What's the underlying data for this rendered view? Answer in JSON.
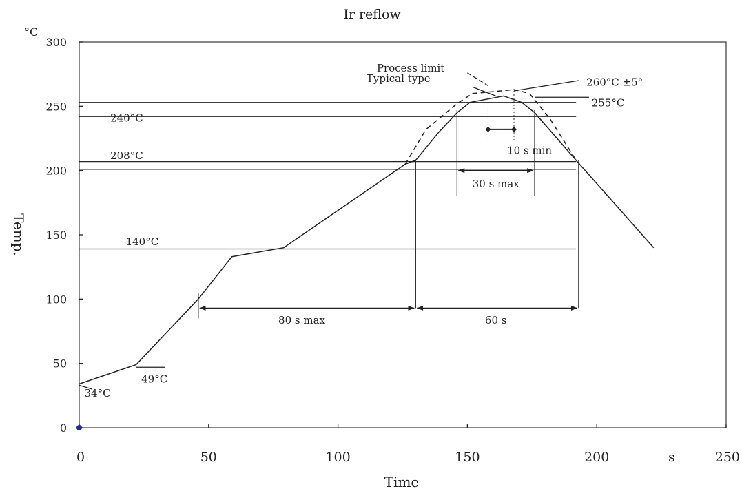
{
  "chart_data": {
    "type": "line",
    "title": "Ir reflow",
    "xlabel": "Time",
    "ylabel": "Temp.",
    "x_unit": "s",
    "y_unit": "°C",
    "xlim": [
      0,
      250
    ],
    "ylim": [
      0,
      300
    ],
    "x_ticks": [
      "0",
      "50",
      "100",
      "150",
      "200",
      "250"
    ],
    "y_ticks": [
      "0",
      "50",
      "100",
      "150",
      "200",
      "250",
      "300"
    ],
    "grid": false,
    "series": [
      {
        "name": "Typical type",
        "style": "solid",
        "x": [
          0,
          22,
          46,
          59,
          79,
          126,
          130,
          139,
          146,
          151,
          164,
          171,
          176,
          192,
          222
        ],
        "y": [
          34,
          49,
          100,
          133,
          140,
          205,
          208,
          230,
          245,
          253,
          258,
          253,
          245,
          208,
          140
        ]
      },
      {
        "name": "Process limit",
        "style": "dashed",
        "x": [
          126,
          134,
          146,
          152,
          158,
          168,
          174,
          182,
          192
        ],
        "y": [
          205,
          232,
          252,
          260,
          261,
          263,
          260,
          240,
          208
        ]
      }
    ],
    "reference_lines": [
      {
        "label": "255°C",
        "y": 253
      },
      {
        "label": "240°C",
        "y": 242
      },
      {
        "label": "208°C",
        "y": 207
      },
      {
        "label": "",
        "y": 201
      },
      {
        "label": "140°C",
        "y": 139
      }
    ],
    "annotations": {
      "process_limit": "Process limit",
      "typical_type": "Typical type",
      "peak": "260°C  ±5°",
      "peak_255": "255°C",
      "t240": "240°C",
      "t208": "208°C",
      "t140": "140°C",
      "t49": "49°C",
      "t34": "34°C",
      "ten_s_min": "10 s min",
      "thirty_s_max": "30 s max",
      "eighty_s_max": "80 s max",
      "sixty_s": "60 s"
    },
    "intervals": [
      {
        "label": "10 s min",
        "x": [
          158,
          168
        ]
      },
      {
        "label": "30 s max",
        "x": [
          146,
          176
        ]
      },
      {
        "label": "80 s max",
        "x": [
          46,
          130
        ]
      },
      {
        "label": "60 s",
        "x": [
          130,
          193
        ]
      }
    ]
  },
  "colors": {
    "line": "#222222",
    "origin_marker": "#1f2aa0"
  }
}
